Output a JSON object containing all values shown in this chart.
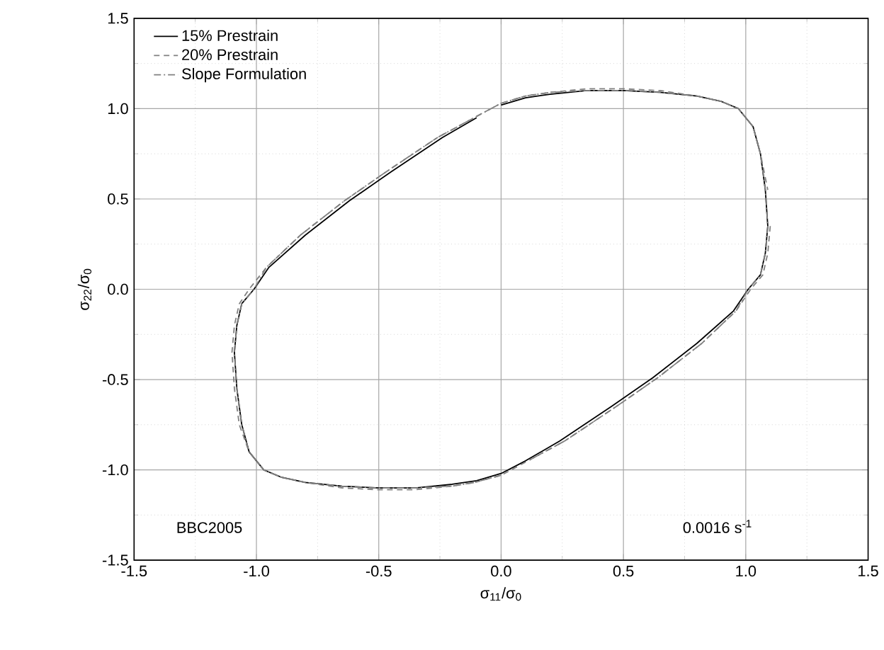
{
  "chart_data": {
    "type": "line",
    "xlabel": "σ$_{11}$/σ$_{0}$",
    "ylabel": "σ$_{22}$/σ$_{0}$",
    "xlim": [
      -1.5,
      1.5
    ],
    "ylim": [
      -1.5,
      1.5
    ],
    "xticks": [
      {
        "value": -1.5,
        "label": "-1.5"
      },
      {
        "value": -1.0,
        "label": "-1.0"
      },
      {
        "value": -0.5,
        "label": "-0.5"
      },
      {
        "value": 0,
        "label": "0.0"
      },
      {
        "value": 0.5,
        "label": "0.5"
      },
      {
        "value": 1.0,
        "label": "1.0"
      },
      {
        "value": 1.5,
        "label": "1.5"
      }
    ],
    "yticks": [
      {
        "value": -1.5,
        "label": "-1.5"
      },
      {
        "value": -1.0,
        "label": "-1.0"
      },
      {
        "value": -0.5,
        "label": "-0.5"
      },
      {
        "value": 0,
        "label": "0.0"
      },
      {
        "value": 0.5,
        "label": "0.5"
      },
      {
        "value": 1.0,
        "label": "1.0"
      },
      {
        "value": 1.5,
        "label": "1.5"
      }
    ],
    "grid": true,
    "legend": "top left",
    "marker": "none",
    "annotations": [
      "BBC2005",
      "0.0016 s$^{-1}$"
    ],
    "series": [
      {
        "name": "15% Prestrain",
        "color": "#000000",
        "line_style": "solid",
        "x": [
          0,
          0.1,
          0.2,
          0.35,
          0.5,
          0.65,
          0.8,
          0.9,
          0.97,
          1.03,
          1.06,
          1.08,
          1.09,
          1.08,
          1.06,
          1.01,
          0.95,
          0.8,
          0.62,
          0.45,
          0.24,
          0.1,
          0,
          -0.1,
          -0.2,
          -0.35,
          -0.5,
          -0.65,
          -0.8,
          -0.9,
          -0.97,
          -1.03,
          -1.06,
          -1.08,
          -1.09,
          -1.08,
          -1.06,
          -1.01,
          -0.95,
          -0.8,
          -0.62,
          -0.45,
          -0.24,
          -0.1
        ],
        "values": [
          1.02,
          1.06,
          1.08,
          1.1,
          1.1,
          1.09,
          1.07,
          1.04,
          1.0,
          0.9,
          0.75,
          0.55,
          0.35,
          0.2,
          0.08,
          0,
          -0.12,
          -0.3,
          -0.49,
          -0.65,
          -0.84,
          -0.95,
          -1.02,
          -1.06,
          -1.08,
          -1.1,
          -1.1,
          -1.09,
          -1.07,
          -1.04,
          -1.0,
          -0.9,
          -0.75,
          -0.55,
          -0.35,
          -0.2,
          -0.08,
          0,
          0.12,
          0.3,
          0.49,
          0.65,
          0.84,
          0.95
        ]
      },
      {
        "name": "20% Prestrain",
        "color": "#808080",
        "line_style": "dashed",
        "x": [
          1.1,
          1.09,
          1.07,
          1.02,
          0.96,
          0.82,
          0.64,
          0.47,
          0.26,
          0.11,
          0,
          -0.11,
          -0.2,
          -0.35,
          -0.5,
          -0.65,
          -0.8,
          -0.9,
          -0.97,
          -1.03,
          -1.07,
          -1.09,
          -1.1,
          -1.09,
          -1.07,
          -1.03,
          -0.96,
          -0.82,
          -0.64,
          -0.47,
          -0.26,
          -0.11,
          0,
          0.1,
          0.2,
          0.35,
          0.5,
          0.65,
          0.8,
          0.9,
          0.97,
          1.03,
          1.06,
          1.09
        ],
        "values": [
          0.35,
          0.2,
          0.08,
          0,
          -0.12,
          -0.3,
          -0.49,
          -0.65,
          -0.84,
          -0.95,
          -1.03,
          -1.07,
          -1.09,
          -1.11,
          -1.11,
          -1.1,
          -1.07,
          -1.04,
          -1.0,
          -0.9,
          -0.75,
          -0.55,
          -0.35,
          -0.2,
          -0.08,
          0,
          0.12,
          0.3,
          0.49,
          0.65,
          0.84,
          0.95,
          1.03,
          1.07,
          1.09,
          1.11,
          1.11,
          1.1,
          1.07,
          1.04,
          1.0,
          0.9,
          0.75,
          0.55
        ]
      },
      {
        "name": "Slope Formulation",
        "color": "#808080",
        "line_style": "dashdot",
        "x": [
          0,
          -0.11,
          -0.2,
          -0.35,
          -0.5,
          -0.65,
          -0.8,
          -0.9,
          -0.97,
          -1.03,
          -1.06,
          -1.08,
          -1.09,
          -1.08,
          -1.06,
          -1.01,
          -0.96,
          -0.82,
          -0.64,
          -0.47,
          -0.26,
          -0.11,
          0,
          0.1,
          0.2,
          0.35,
          0.5,
          0.65,
          0.8,
          0.9,
          0.97,
          1.03,
          1.06,
          1.08,
          1.09,
          1.08,
          1.06,
          1.01,
          0.96,
          0.82,
          0.64,
          0.47,
          0.26,
          0.11
        ],
        "values": [
          -1.03,
          -1.07,
          -1.09,
          -1.1,
          -1.1,
          -1.09,
          -1.07,
          -1.04,
          -1.0,
          -0.9,
          -0.75,
          -0.55,
          -0.35,
          -0.2,
          -0.08,
          0,
          0.12,
          0.3,
          0.49,
          0.65,
          0.84,
          0.95,
          1.03,
          1.07,
          1.09,
          1.1,
          1.1,
          1.09,
          1.07,
          1.04,
          1.0,
          0.9,
          0.75,
          0.55,
          0.35,
          0.2,
          0.08,
          0,
          -0.12,
          -0.3,
          -0.49,
          -0.65,
          -0.84,
          -0.95
        ]
      }
    ]
  }
}
